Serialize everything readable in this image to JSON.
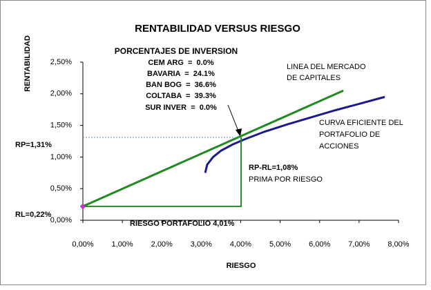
{
  "chart_data": {
    "type": "line",
    "title": "RENTABILIDAD VERSUS RIESGO",
    "x_label": "RIESGO",
    "y_label": "RENTABILIDAD",
    "xlim": [
      0,
      8
    ],
    "ylim": [
      0,
      2.5
    ],
    "xticks": [
      {
        "value": 0,
        "label": "0,00%"
      },
      {
        "value": 1,
        "label": "1,00%"
      },
      {
        "value": 2,
        "label": "2,00%"
      },
      {
        "value": 3,
        "label": "3,00%"
      },
      {
        "value": 4,
        "label": "4,00%"
      },
      {
        "value": 5,
        "label": "5,00%"
      },
      {
        "value": 6,
        "label": "6,00%"
      },
      {
        "value": 7,
        "label": "7,00%"
      },
      {
        "value": 8,
        "label": "8,00%"
      }
    ],
    "yticks": [
      {
        "value": 0,
        "label": "0,00%"
      },
      {
        "value": 0.5,
        "label": "0,50%"
      },
      {
        "value": 1,
        "label": "1,00%"
      },
      {
        "value": 1.5,
        "label": "1,50%"
      },
      {
        "value": 2,
        "label": "2,00%"
      },
      {
        "value": 2.5,
        "label": "2,50%"
      }
    ],
    "grid": false,
    "series": [
      {
        "x": [
          0,
          6.6
        ],
        "values": [
          0.22,
          2.05
        ],
        "color": "#1f8a1f",
        "width": 3
      },
      {
        "x": [
          3.1,
          3.15,
          3.3,
          3.5,
          3.8,
          4.1,
          4.6,
          5.2,
          5.8,
          6.4,
          7.0,
          7.65
        ],
        "values": [
          0.75,
          0.88,
          1.0,
          1.1,
          1.2,
          1.28,
          1.4,
          1.52,
          1.63,
          1.74,
          1.84,
          1.95
        ],
        "color": "#1a1a8c",
        "width": 3
      },
      {
        "x": [
          0,
          4.01
        ],
        "values": [
          1.31,
          1.31
        ],
        "color": "#6f7fe8",
        "width": 1,
        "dash": "2,2"
      },
      {
        "x": [
          0,
          4.01,
          4.01
        ],
        "values": [
          0.22,
          0.22,
          1.31
        ],
        "color": "#1f8a1f",
        "width": 2
      },
      {
        "x": [
          0
        ],
        "values": [
          0.22
        ],
        "color": "#cc33cc",
        "marker": "diamond"
      }
    ],
    "annotations": [
      "PORCENTAJES DE INVERSION",
      "CEM ARG  =  0.0%",
      "BAVARIA  =  24.1%",
      "BAN BOG  =  36.6%",
      "COLTABA  =  39.3%",
      "SUR INVER  =  0.0%",
      "LINEA DEL MERCADO",
      "DE CAPITALES",
      "CURVA EFICIENTE DEL",
      "PORTAFOLIO DE",
      "ACCIONES",
      "RP=1,31%",
      "RL=0,22%",
      "RP-RL=1,08%",
      "PRIMA POR RIESGO",
      "RIESGO PORTAFOLIO 4,01%"
    ]
  }
}
